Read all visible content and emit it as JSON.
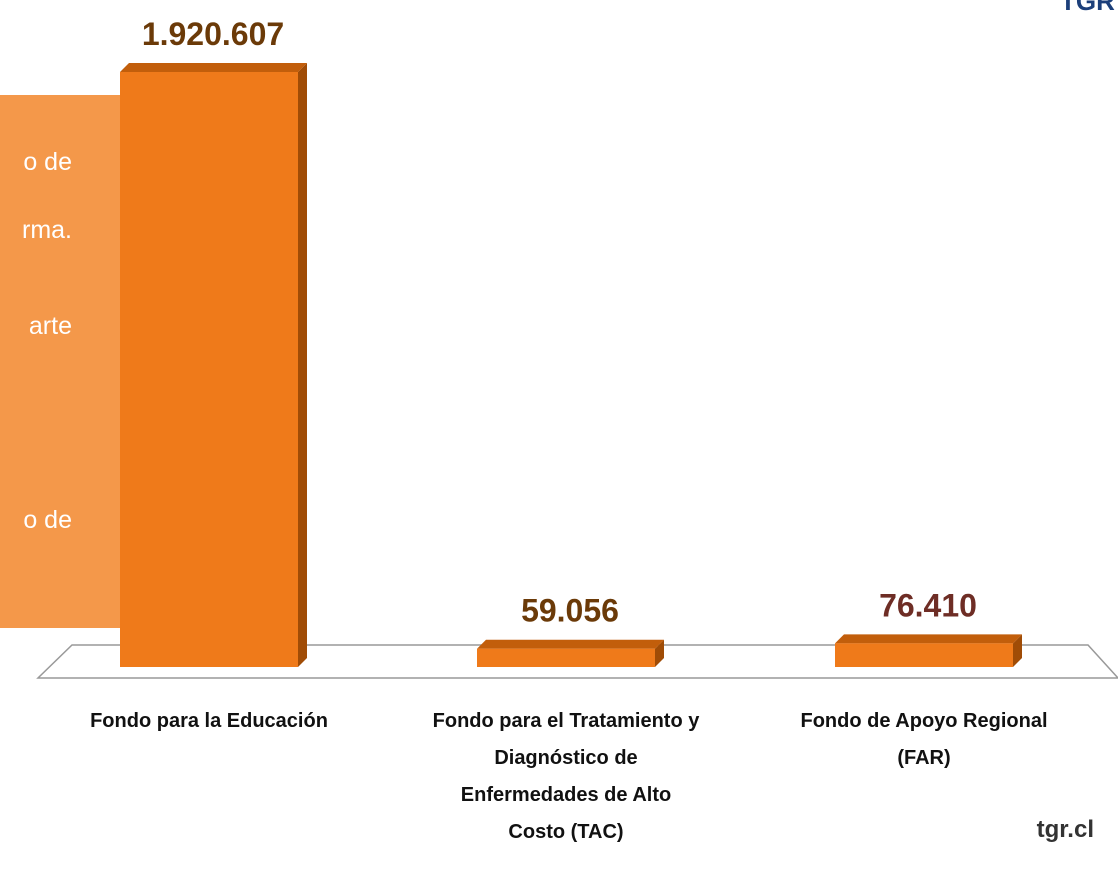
{
  "chart_data": {
    "type": "bar3d",
    "categories": [
      "Fondo para la Educación",
      "Fondo para el Tratamiento y Diagnóstico de Enfermedades de Alto Costo (TAC)",
      "Fondo de Apoyo Regional (FAR)"
    ],
    "values": [
      1920607,
      59056,
      76410
    ],
    "value_labels": [
      "1.920.607",
      "59.056",
      "76.410"
    ],
    "value_label_colors": [
      "#6b3a08",
      "#6b3a08",
      "#6e2d25"
    ],
    "color": "#ef7a1a"
  },
  "side_box": {
    "lines": [
      "o de",
      "rma.",
      "arte",
      "o de"
    ]
  },
  "footer": {
    "site": "tgr.cl"
  },
  "logo": {
    "text": "TGR"
  }
}
